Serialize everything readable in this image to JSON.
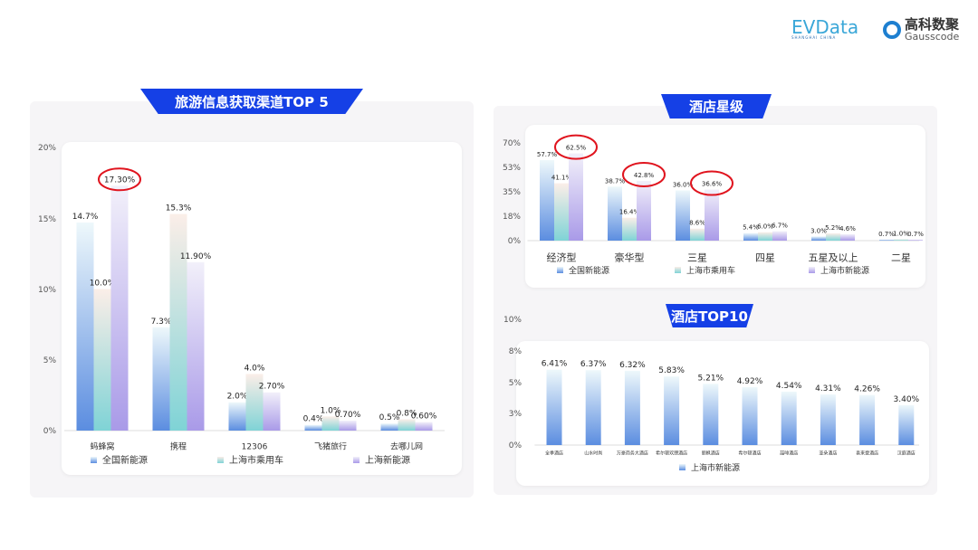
{
  "logos": {
    "evdata": "EVData",
    "evdata_sub": "SHANGHAI CHINA",
    "gauss_cn": "高科数聚",
    "gauss_en": "Gausscode"
  },
  "colors": {
    "national": "#5b8de0",
    "passenger": "#7fd3d6",
    "shanghai": "#a99ae8",
    "banner": "#1540e6",
    "highlight": "#e0141e"
  },
  "chart_data": [
    {
      "type": "bar",
      "title": "旅游信息获取渠道TOP 5",
      "categories": [
        "蚂蜂窝",
        "携程",
        "12306",
        "飞猪旅行",
        "去哪儿网"
      ],
      "yticks": [
        "0%",
        "5%",
        "10%",
        "15%",
        "20%"
      ],
      "ylim": [
        0,
        20
      ],
      "legend": "bottom",
      "series": [
        {
          "name": "全国新能源",
          "values": [
            14.7,
            7.3,
            2.0,
            0.4,
            0.5
          ],
          "labels": [
            "14.7%",
            "7.3%",
            "2.0%",
            "0.4%",
            "0.5%"
          ]
        },
        {
          "name": "上海市乘用车",
          "values": [
            10.0,
            15.3,
            4.0,
            1.0,
            0.8
          ],
          "labels": [
            "10.0%",
            "15.3%",
            "4.0%",
            "1.0%",
            "0.8%"
          ]
        },
        {
          "name": "上海新能源",
          "values": [
            17.3,
            11.9,
            2.7,
            0.7,
            0.6
          ],
          "labels": [
            "17.30%",
            "11.90%",
            "2.70%",
            "0.70%",
            "0.60%"
          ]
        }
      ],
      "highlighted": [
        "17.30%"
      ]
    },
    {
      "type": "bar",
      "title": "酒店星级",
      "categories": [
        "经济型",
        "豪华型",
        "三星",
        "四星",
        "五星及以上",
        "二星"
      ],
      "yticks": [
        "0%",
        "18%",
        "35%",
        "53%",
        "70%"
      ],
      "ylim": [
        0,
        70
      ],
      "legend": "bottom",
      "series": [
        {
          "name": "全国新能源",
          "values": [
            57.7,
            38.7,
            36.0,
            5.4,
            3.0,
            0.7
          ],
          "labels": [
            "57.7%",
            "38.7%",
            "36.0%",
            "5.4%",
            "3.0%",
            "0.7%"
          ]
        },
        {
          "name": "上海市乘用车",
          "values": [
            41.1,
            16.4,
            8.6,
            6.0,
            5.2,
            1.0
          ],
          "labels": [
            "41.1%",
            "16.4%",
            "8.6%",
            "6.0%",
            "5.2%",
            "1.0%"
          ]
        },
        {
          "name": "上海市新能源",
          "values": [
            62.5,
            42.8,
            36.6,
            6.7,
            4.6,
            0.7
          ],
          "labels": [
            "62.5%",
            "42.8%",
            "36.6%",
            "6.7%",
            "4.6%",
            "0.7%"
          ]
        }
      ],
      "highlighted": [
        "62.5%",
        "42.8%",
        "36.6%"
      ]
    },
    {
      "type": "bar",
      "title": "酒店TOP10",
      "categories": [
        "全季酒店",
        "山水时尚",
        "万豪商务大酒店",
        "希尔顿欢朋酒店",
        "丽枫酒店",
        "希尔顿酒店",
        "喆啡酒店",
        "亚朵酒店",
        "喜来登酒店",
        "汉庭酒店"
      ],
      "yticks": [
        "0%",
        "3%",
        "5%",
        "8%",
        "10%"
      ],
      "ylim": [
        0,
        8
      ],
      "legend": "bottom",
      "series": [
        {
          "name": "上海市新能源",
          "values": [
            6.41,
            6.37,
            6.32,
            5.83,
            5.21,
            4.92,
            4.54,
            4.31,
            4.26,
            3.4
          ],
          "labels": [
            "6.41%",
            "6.37%",
            "6.32%",
            "5.83%",
            "5.21%",
            "4.92%",
            "4.54%",
            "4.31%",
            "4.26%",
            "3.40%"
          ]
        }
      ]
    }
  ]
}
